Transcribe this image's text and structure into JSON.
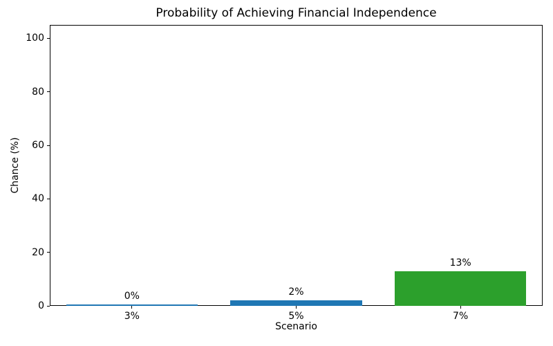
{
  "chart_data": {
    "type": "bar",
    "title": "Probability of Achieving Financial Independence",
    "xlabel": "Scenario",
    "ylabel": "Chance (%)",
    "categories": [
      "3%",
      "5%",
      "7%"
    ],
    "values": [
      0.4,
      2,
      13
    ],
    "bar_labels": [
      "0%",
      "2%",
      "13%"
    ],
    "bar_colors": [
      "#1f77b4",
      "#1f77b4",
      "#2ca02c"
    ],
    "yticks": [
      0,
      20,
      40,
      60,
      80,
      100
    ],
    "ylim": [
      0,
      105
    ],
    "bar_width_fraction": 0.8,
    "grid": false,
    "legend": false
  },
  "colors": {
    "background": "#ffffff",
    "axis": "#000000",
    "text": "#000000",
    "bar_blue": "#1f77b4",
    "bar_green": "#2ca02c"
  }
}
